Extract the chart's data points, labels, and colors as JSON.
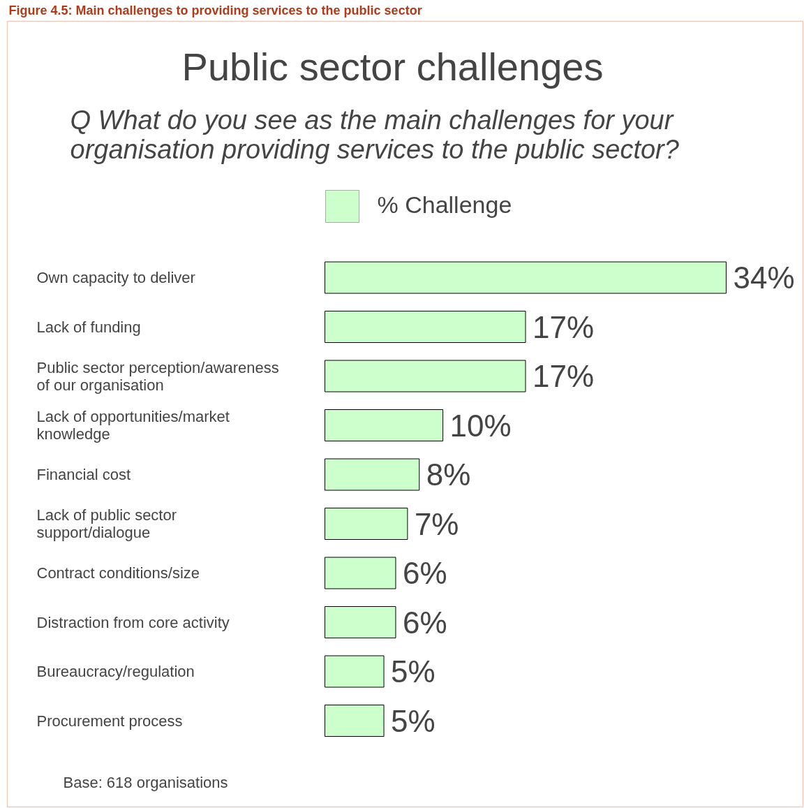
{
  "chart_data": {
    "type": "bar",
    "orientation": "horizontal",
    "relative": false,
    "title": "Public sector challenges",
    "subtitle": "Q    What do you see as the main challenges for your organisation providing services to the public sector?",
    "categories": [
      "Own capacity to deliver",
      "Lack of funding",
      "Public sector perception/awareness of our organisation",
      "Lack of opportunities/market knowledge",
      "Financial cost",
      "Lack of public sector support/dialogue",
      "Contract conditions/size",
      "Distraction from core activity",
      "Bureaucracy/regulation",
      "Procurement process"
    ],
    "series": [
      {
        "name": "% Challenge",
        "color": "#ccffcc",
        "values": [
          34,
          17,
          17,
          10,
          8,
          7,
          6,
          6,
          5,
          5
        ],
        "value_labels": [
          "34%",
          "17%",
          "17%",
          "10%",
          "8%",
          "7%",
          "6%",
          "6%",
          "5%",
          "5%"
        ]
      }
    ],
    "legend": "top",
    "annotations": [
      "Figure 4.5: Main challenges to providing services to the public sector",
      "Base: 618 organisations"
    ]
  }
}
